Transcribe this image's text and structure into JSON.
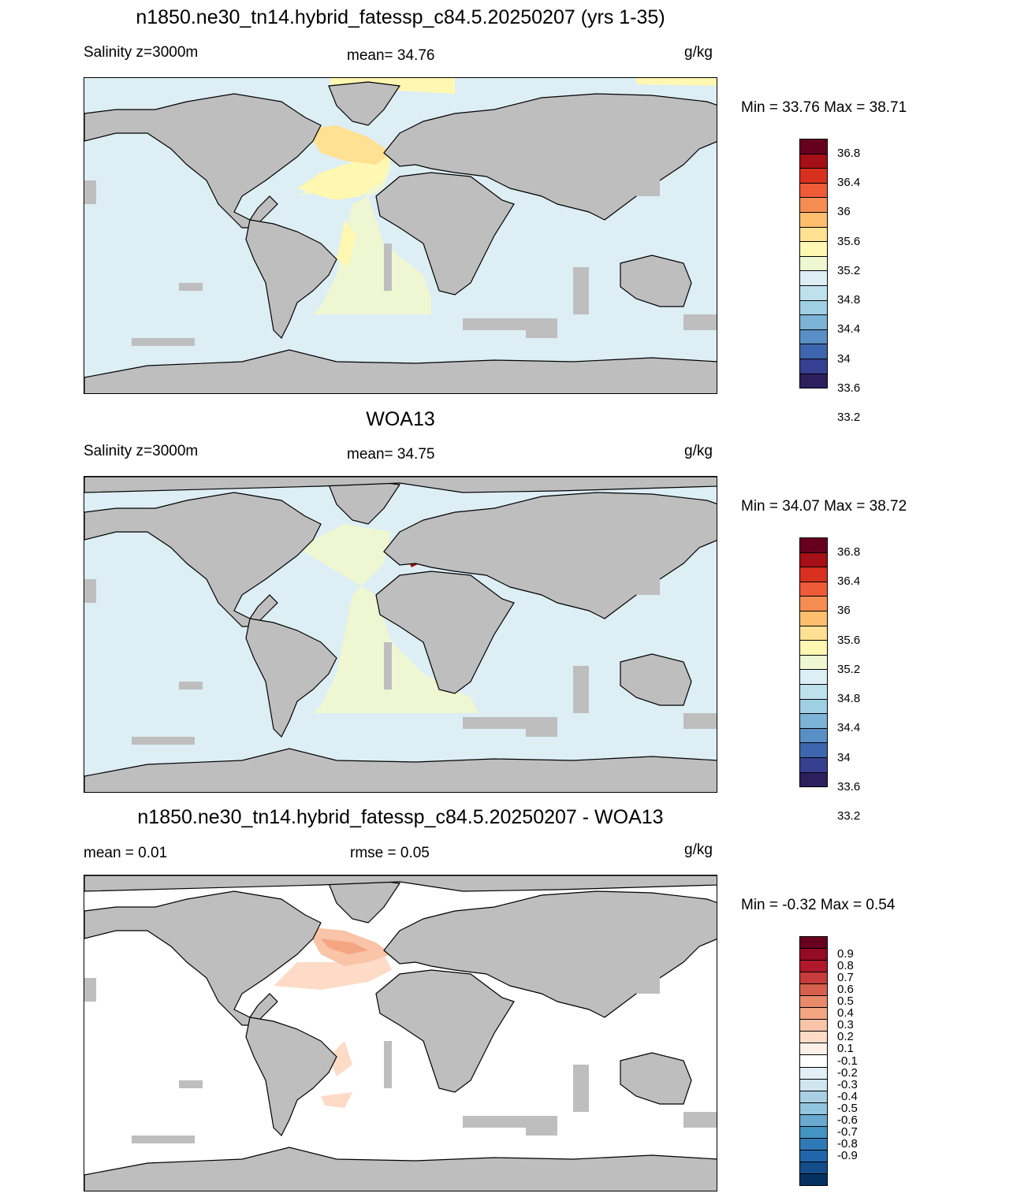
{
  "panels": [
    {
      "title": "n1850.ne30_tn14.hybrid_fatessp_c84.5.20250207 (yrs 1-35)",
      "left_label": "Salinity z=3000m",
      "center_label": "mean=  34.76",
      "units": "g/kg",
      "minmax": "Min =  33.76 Max =  38.71"
    },
    {
      "title": "WOA13",
      "left_label": "Salinity z=3000m",
      "center_label": "mean=  34.75",
      "units": "g/kg",
      "minmax": "Min =  34.07 Max =  38.72"
    },
    {
      "title": "n1850.ne30_tn14.hybrid_fatessp_c84.5.20250207 - WOA13",
      "left_label": "mean =   0.01",
      "center_label": "rmse =   0.05",
      "units": "g/kg",
      "minmax": "Min =  -0.32 Max =   0.54"
    }
  ],
  "colorbar_salinity": {
    "labels": [
      "36.8",
      "36.4",
      "36",
      "35.6",
      "35.2",
      "34.8",
      "34.4",
      "34",
      "33.6",
      "33.2"
    ],
    "colors": [
      "#67001f",
      "#a50f15",
      "#d7301f",
      "#ef5a38",
      "#f68d52",
      "#fdbe6e",
      "#fee192",
      "#fff7b2",
      "#eef7d2",
      "#ddeef5",
      "#bfe1ee",
      "#9fcfe3",
      "#7cb3d6",
      "#5a8fc6",
      "#3e66ae",
      "#373f91",
      "#2b1f5e"
    ]
  },
  "colorbar_diff": {
    "labels": [
      "0.9",
      "0.8",
      "0.7",
      "0.6",
      "0.5",
      "0.4",
      "0.3",
      "0.2",
      "0.1",
      "-0.1",
      "-0.2",
      "-0.3",
      "-0.4",
      "-0.5",
      "-0.6",
      "-0.7",
      "-0.8",
      "-0.9"
    ],
    "colors": [
      "#67001f",
      "#940b24",
      "#b2182b",
      "#c83b3b",
      "#d6604d",
      "#e98a6c",
      "#f4a582",
      "#f9c4a8",
      "#fddbc7",
      "#fdf0e8",
      "#ffffff",
      "#e3eff6",
      "#d1e5f0",
      "#a8cfe4",
      "#92c5de",
      "#6aaad0",
      "#4393c3",
      "#2f79b6",
      "#2166ac",
      "#154c8a",
      "#053061"
    ]
  },
  "map_colors": {
    "land": "#bebebe",
    "ocean_fresh": "#ddeef5",
    "ocean_atlantic_1": "#eef7d2",
    "ocean_atlantic_2": "#fff7b2",
    "ocean_atlantic_3": "#fee192",
    "ocean_diff": "#ffffff",
    "diff_pos_1": "#fddbc7",
    "diff_pos_2": "#f9c4a8",
    "diff_pos_3": "#f4a582"
  }
}
